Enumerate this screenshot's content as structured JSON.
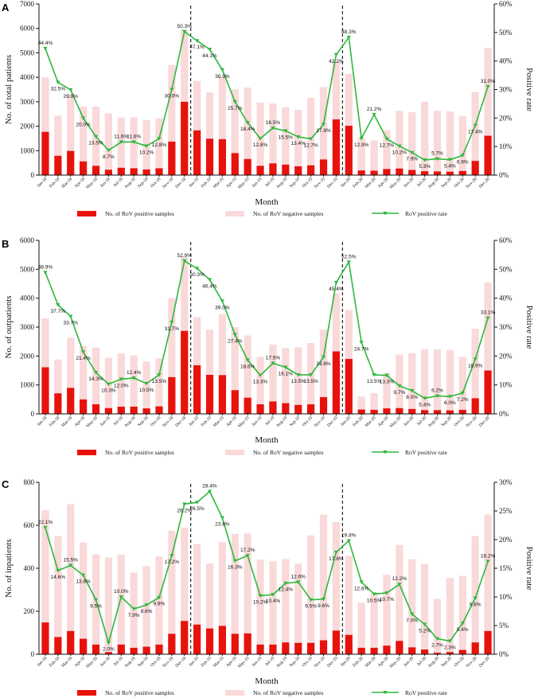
{
  "months": [
    "Jan-18",
    "Feb-18",
    "Mar-18",
    "Apr-18",
    "May-18",
    "Jun-18",
    "Jul-18",
    "Aug-18",
    "Sep-18",
    "Oct-18",
    "Nov-18",
    "Dec-18",
    "Jan-19",
    "Feb-19",
    "Mar-19",
    "Apr-19",
    "May-19",
    "Jun-19",
    "Jul-19",
    "Aug-19",
    "Sep-19",
    "Oct-19",
    "Nov-19",
    "Dec-19",
    "Jan-20",
    "Feb-20",
    "Mar-20",
    "Apr-20",
    "May-20",
    "Jun-20",
    "Jul-20",
    "Aug-20",
    "Sep-20",
    "Oct-20",
    "Nov-20",
    "Dec-20"
  ],
  "legend": {
    "positive": "No. of RoV positive samples",
    "negative": "No. of RoV negative samples",
    "rate": "RoV positive rate"
  },
  "colors": {
    "positive": "#e8120c",
    "negative": "#f9d9d9",
    "rate": "#2db83d"
  },
  "chart_data": [
    {
      "panel": "A",
      "type": "bar+line",
      "xlabel": "Month",
      "ylabel": "No. of total patients",
      "y2label": "Positive rate",
      "ylim": [
        0,
        7000
      ],
      "yticks": [
        0,
        1000,
        2000,
        3000,
        4000,
        5000,
        6000,
        7000
      ],
      "y2lim": [
        0,
        60
      ],
      "y2ticks": [
        "0%",
        "10%",
        "20%",
        "30%",
        "40%",
        "50%",
        "60%"
      ],
      "positive": [
        1770,
        790,
        990,
        560,
        380,
        220,
        300,
        280,
        230,
        280,
        1370,
        3000,
        1830,
        1490,
        1470,
        900,
        660,
        380,
        480,
        430,
        360,
        400,
        640,
        2280,
        2020,
        190,
        180,
        250,
        270,
        210,
        160,
        150,
        140,
        170,
        580,
        1610
      ],
      "negative": [
        2230,
        1640,
        2320,
        2240,
        2420,
        2310,
        2050,
        2090,
        2020,
        2050,
        3140,
        2960,
        2020,
        1890,
        2530,
        2610,
        2920,
        2580,
        2450,
        2340,
        2310,
        2760,
        2960,
        2380,
        2120,
        1330,
        1240,
        1590,
        2360,
        2360,
        2840,
        2480,
        2460,
        2250,
        2820,
        3590
      ],
      "rate": [
        44.4,
        32.5,
        29.9,
        20.0,
        13.5,
        8.7,
        11.6,
        11.6,
        10.2,
        12.8,
        30.0,
        50.3,
        47.1,
        44.1,
        36.9,
        25.7,
        18.4,
        12.8,
        16.5,
        15.5,
        13.4,
        12.7,
        17.8,
        42.2,
        48.3,
        12.9,
        21.2,
        12.7,
        10.2,
        7.9,
        5.3,
        5.7,
        5.4,
        6.9,
        17.4,
        31.0
      ],
      "rate_labels": [
        "44.4%",
        "32.5%",
        "29.9%",
        "20.0%",
        "13.5%",
        "8.7%",
        "11.6%",
        "11.6%",
        "10.2%",
        "12.8%",
        "30.0%",
        "50.3%",
        "47.1%",
        "44.1%",
        "36.9%",
        "25.7%",
        "18.4%",
        "12.8%",
        "16.5%",
        "15.5%",
        "13.4%",
        "12.7%",
        "17.8%",
        "42.2%",
        "48.3%",
        "12.9%",
        "21.2%",
        "12.7%",
        "10.2%",
        "7.9%",
        "5.3%",
        "5.7%",
        "5.4%",
        "6.9%",
        "17.4%",
        "31.0%"
      ],
      "dividers_after": [
        "Dec-18",
        "Dec-19"
      ]
    },
    {
      "panel": "B",
      "type": "bar+line",
      "xlabel": "Month",
      "ylabel": "No. of outpatients",
      "y2label": "Positive rate",
      "ylim": [
        0,
        6000
      ],
      "yticks": [
        0,
        1000,
        2000,
        3000,
        4000,
        5000,
        6000
      ],
      "y2lim": [
        0,
        60
      ],
      "y2ticks": [
        "0%",
        "10%",
        "20%",
        "30%",
        "40%",
        "50%",
        "60%"
      ],
      "positive": [
        1610,
        710,
        900,
        500,
        330,
        200,
        250,
        250,
        190,
        260,
        1270,
        2870,
        1680,
        1350,
        1340,
        820,
        560,
        330,
        430,
        370,
        310,
        330,
        580,
        2160,
        1900,
        150,
        140,
        190,
        200,
        170,
        130,
        130,
        120,
        140,
        540,
        1500
      ],
      "negative": [
        1690,
        1170,
        1730,
        1850,
        1970,
        1740,
        1840,
        1770,
        1620,
        1660,
        2730,
        2550,
        1660,
        1560,
        2110,
        2180,
        2150,
        1640,
        1970,
        1900,
        1990,
        2120,
        2330,
        2010,
        1690,
        450,
        580,
        1230,
        1850,
        1930,
        2110,
        2100,
        2090,
        1830,
        2400,
        3040
      ],
      "rate": [
        48.9,
        37.7,
        33.7,
        21.4,
        14.3,
        10.3,
        12.0,
        12.4,
        10.5,
        13.5,
        31.7,
        52.9,
        50.3,
        46.4,
        39.0,
        27.4,
        18.6,
        13.3,
        17.5,
        16.1,
        13.5,
        13.5,
        19.6,
        45.4,
        52.5,
        24.7,
        13.5,
        13.3,
        9.7,
        8.0,
        5.4,
        6.2,
        6.0,
        7.2,
        18.9,
        33.1
      ],
      "rate_labels": [
        "48.9%",
        "37.7%",
        "33.7%",
        "21.4%",
        "14.3%",
        "10.3%",
        "12.0%",
        "12.4%",
        "10.5%",
        "13.5%",
        "31.7%",
        "52.9%",
        "50.3%",
        "46.4%",
        "39.0%",
        "27.4%",
        "18.6%",
        "13.3%",
        "17.5%",
        "16.1%",
        "13.5%",
        "13.5%",
        "19.6%",
        "45.4%",
        "52.5%",
        "24.7%",
        "13.5%",
        "13.3%",
        "9.7%",
        "8.0%",
        "5.4%",
        "6.2%",
        "6.0%",
        "7.2%",
        "18.9%",
        "33.1%"
      ],
      "dividers_after": [
        "Dec-18",
        "Dec-19"
      ]
    },
    {
      "panel": "C",
      "type": "bar+line",
      "xlabel": "Month",
      "ylabel": "No. of inpatients",
      "y2label": "Positive rate",
      "ylim": [
        0,
        800
      ],
      "yticks": [
        0,
        200,
        400,
        600,
        800
      ],
      "y2lim": [
        0,
        30
      ],
      "y2ticks": [
        "0%",
        "5%",
        "10%",
        "15%",
        "20%",
        "25%",
        "30%"
      ],
      "positive": [
        148,
        80,
        108,
        72,
        45,
        10,
        45,
        30,
        35,
        45,
        95,
        155,
        138,
        120,
        132,
        95,
        97,
        45,
        45,
        55,
        53,
        53,
        65,
        110,
        90,
        30,
        30,
        40,
        62,
        32,
        22,
        7,
        10,
        20,
        55,
        108
      ],
      "negative": [
        522,
        470,
        590,
        448,
        420,
        440,
        418,
        350,
        375,
        410,
        480,
        435,
        375,
        302,
        390,
        465,
        465,
        395,
        387,
        388,
        368,
        500,
        585,
        505,
        368,
        210,
        255,
        330,
        446,
        410,
        398,
        250,
        345,
        345,
        495,
        542
      ],
      "rate": [
        22.1,
        14.6,
        15.5,
        13.8,
        9.5,
        2.0,
        10.0,
        7.9,
        8.6,
        9.9,
        17.2,
        26.2,
        26.5,
        28.4,
        23.8,
        16.3,
        17.2,
        10.2,
        10.4,
        12.4,
        12.6,
        9.5,
        9.6,
        17.8,
        19.8,
        12.6,
        10.5,
        10.7,
        12.2,
        7.0,
        5.2,
        2.7,
        2.3,
        5.4,
        9.8,
        16.2
      ],
      "rate_labels": [
        "22.1%",
        "14.6%",
        "15.5%",
        "13.8%",
        "9.5%",
        "2.0%",
        "10.0%",
        "7.9%",
        "8.6%",
        "9.9%",
        "17.2%",
        "26.2%",
        "26.5%",
        "28.4%",
        "23.8%",
        "16.3%",
        "17.2%",
        "10.2%",
        "10.4%",
        "12.4%",
        "12.6%",
        "9.5%",
        "9.6%",
        "17.8%",
        "19.8%",
        "12.6%",
        "10.5%",
        "10.7%",
        "12.2%",
        "7.0%",
        "5.2%",
        "2.7%",
        "2.3%",
        "5.4%",
        "9.8%",
        "16.2%"
      ],
      "dividers_after": [
        "Dec-18",
        "Dec-19"
      ]
    }
  ]
}
